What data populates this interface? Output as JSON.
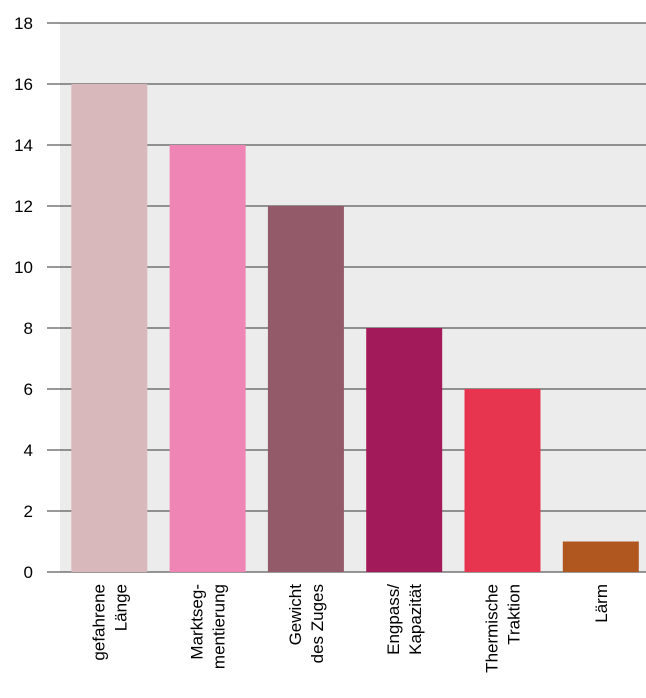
{
  "chart_data": {
    "type": "bar",
    "categories": [
      [
        "gefahrene",
        "Länge"
      ],
      [
        "Marktseg-",
        "mentierung"
      ],
      [
        "Gewicht",
        "des Zuges"
      ],
      [
        "Engpass/",
        "Kapazität"
      ],
      [
        "Thermische",
        "Traktion"
      ],
      [
        "Lärm"
      ]
    ],
    "values": [
      16,
      14,
      12,
      8,
      6,
      1
    ],
    "colors": [
      "#d9b8bb",
      "#ef85b4",
      "#935a69",
      "#a31a5a",
      "#e7344f",
      "#b0561f"
    ],
    "ylim": [
      0,
      18
    ],
    "yticks": [
      0,
      2,
      4,
      6,
      8,
      10,
      12,
      14,
      16,
      18
    ],
    "grid": true,
    "plot_background": "#ececec",
    "gridline_color": "#333333"
  }
}
